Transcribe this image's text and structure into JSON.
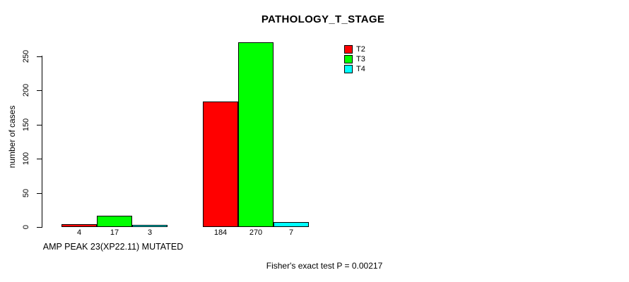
{
  "chart_data": {
    "type": "bar",
    "title": "PATHOLOGY_T_STAGE",
    "ylabel": "number of cases",
    "xlabel": "",
    "ylim": [
      0,
      250
    ],
    "yticks": [
      0,
      50,
      100,
      150,
      200,
      250
    ],
    "grid": false,
    "legend_position": "top-right",
    "series": [
      {
        "name": "T2",
        "color": "#ff0000"
      },
      {
        "name": "T3",
        "color": "#00ff00"
      },
      {
        "name": "T4",
        "color": "#00ffff"
      }
    ],
    "groups": [
      {
        "label": "AMP PEAK 23(XP22.11) MUTATED",
        "values": [
          4,
          17,
          3
        ]
      },
      {
        "label": "",
        "values": [
          184,
          270,
          7
        ]
      }
    ],
    "bar_value_labels": [
      [
        "4",
        "17",
        "3"
      ],
      [
        "184",
        "270",
        "7"
      ]
    ],
    "footnote": "Fisher's exact test P = 0.00217",
    "colors": {
      "background": "#ffffff",
      "axis": "#000000",
      "text": "#000000"
    }
  }
}
